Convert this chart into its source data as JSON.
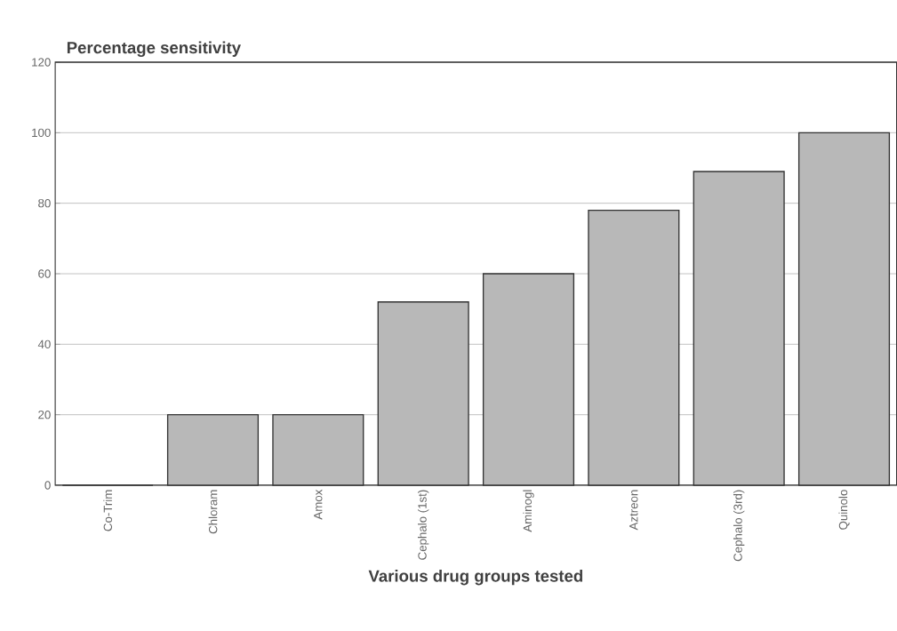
{
  "chart_data": {
    "type": "bar",
    "ylabel": "Percentage sensitivity",
    "xlabel": "Various drug groups tested",
    "categories": [
      "Co-Trim",
      "Chloram",
      "Amox",
      "Cephalo (1st)",
      "Aminogl",
      "Aztreon",
      "Cephalo (3rd)",
      "Quinolo"
    ],
    "values": [
      0,
      20,
      20,
      52,
      60,
      78,
      89,
      100
    ],
    "color": "#333333",
    "ylim": [
      0,
      120
    ],
    "yticks": [
      0,
      20,
      40,
      60,
      80,
      100,
      120
    ],
    "grid": "y"
  }
}
